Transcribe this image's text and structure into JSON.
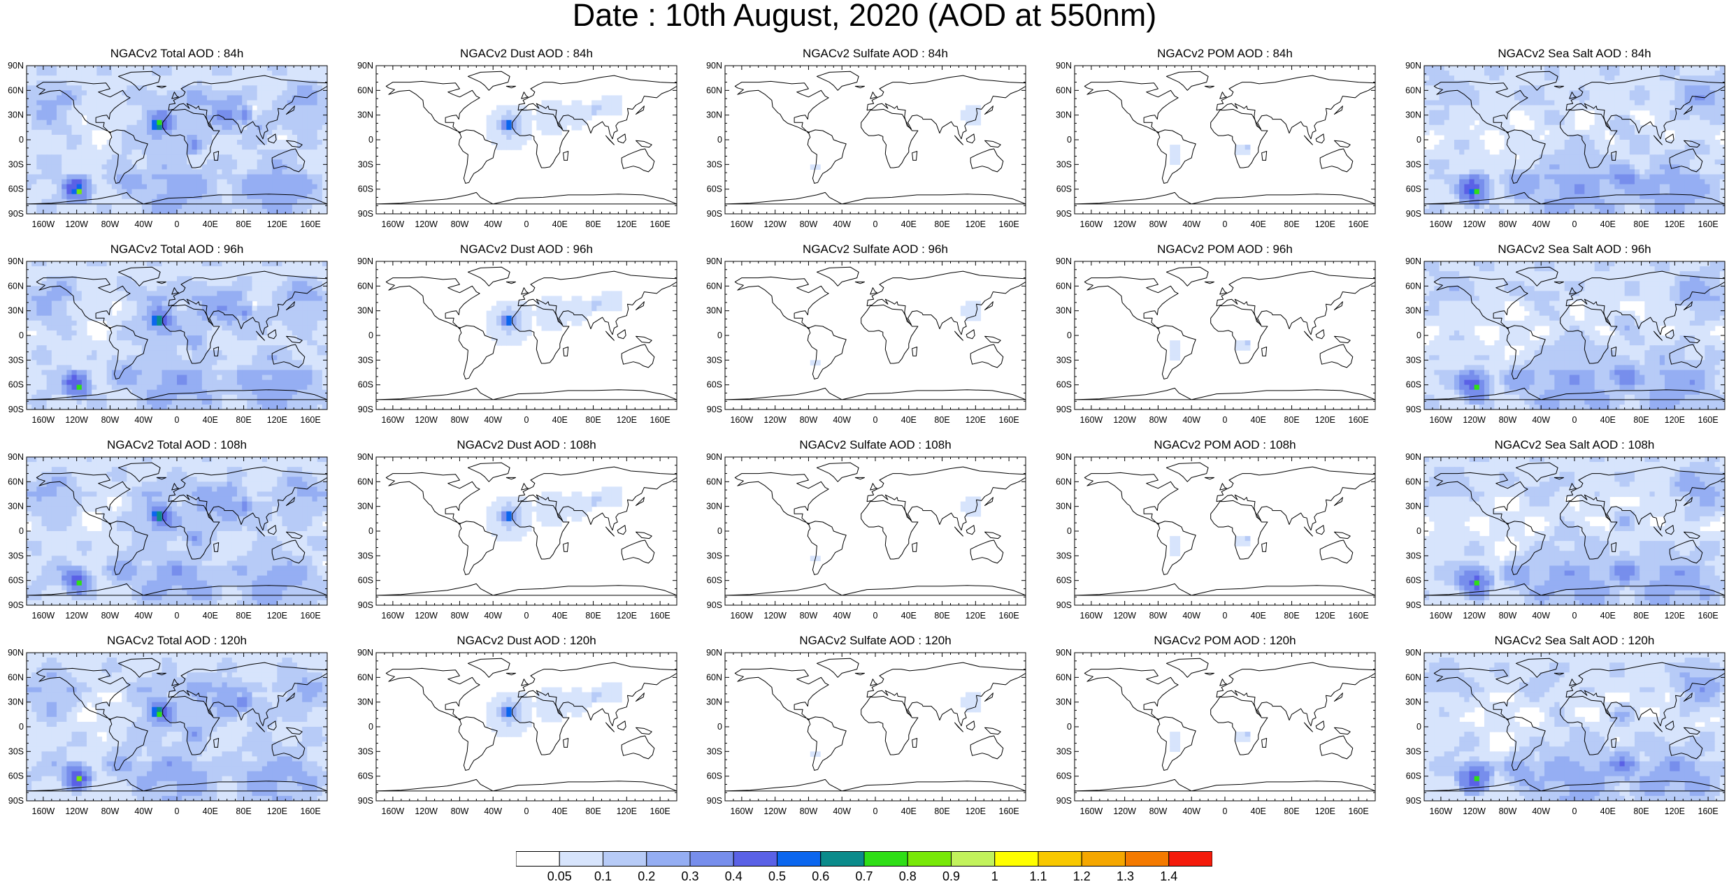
{
  "title": "Date : 10th August, 2020 (AOD at 550nm)",
  "panels": [
    [
      "NGACv2 Total AOD : 84h",
      "NGACv2 Dust AOD : 84h",
      "NGACv2 Sulfate AOD : 84h",
      "NGACv2 POM AOD : 84h",
      "NGACv2 Sea Salt AOD : 84h"
    ],
    [
      "NGACv2 Total AOD : 96h",
      "NGACv2 Dust AOD : 96h",
      "NGACv2 Sulfate AOD : 96h",
      "NGACv2 POM AOD : 96h",
      "NGACv2 Sea Salt AOD : 96h"
    ],
    [
      "NGACv2 Total AOD : 108h",
      "NGACv2 Dust AOD : 108h",
      "NGACv2 Sulfate AOD : 108h",
      "NGACv2 POM AOD : 108h",
      "NGACv2 Sea Salt AOD : 108h"
    ],
    [
      "NGACv2 Total AOD : 120h",
      "NGACv2 Dust AOD : 120h",
      "NGACv2 Sulfate AOD : 120h",
      "NGACv2 POM AOD : 120h",
      "NGACv2 Sea Salt  AOD : 120h"
    ]
  ],
  "lat_labels": [
    "90N",
    "60N",
    "30N",
    "0",
    "30S",
    "60S",
    "90S"
  ],
  "lon_labels": [
    "160W",
    "120W",
    "80W",
    "40W",
    "0",
    "40E",
    "80E",
    "120E",
    "160E"
  ],
  "colorbar": {
    "labels": [
      "0.05",
      "0.1",
      "0.2",
      "0.3",
      "0.4",
      "0.5",
      "0.6",
      "0.7",
      "0.8",
      "0.9",
      "1",
      "1.1",
      "1.2",
      "1.3",
      "1.4"
    ],
    "colors": [
      "#ffffff",
      "#d7e4fc",
      "#b7cbf7",
      "#95aef3",
      "#778eec",
      "#5a61e6",
      "#0b66ee",
      "#0b8b8b",
      "#2fde16",
      "#78e808",
      "#c2f25c",
      "#ffff00",
      "#f8c800",
      "#f5a700",
      "#f47a00",
      "#f41b0b"
    ]
  }
}
